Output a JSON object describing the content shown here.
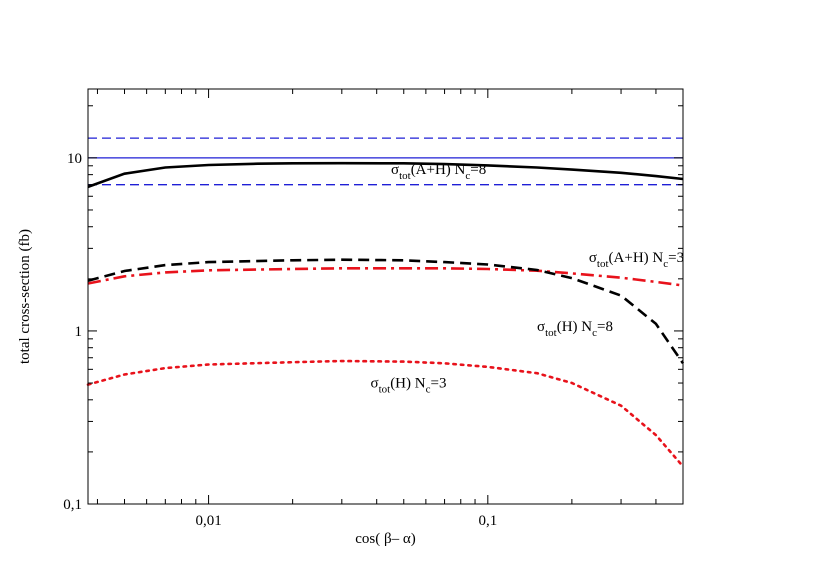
{
  "chart_data": {
    "type": "line",
    "x_scale": "log",
    "y_scale": "log",
    "xlim": [
      0.0037,
      0.5
    ],
    "ylim": [
      0.1,
      25
    ],
    "xlabel": "cos( β– α)",
    "ylabel": "total cross-section (fb)",
    "x_ticks": [
      {
        "value": 0.01,
        "label": "0,01"
      },
      {
        "value": 0.1,
        "label": "0,1"
      }
    ],
    "y_ticks": [
      {
        "value": 0.1,
        "label": "0,1"
      },
      {
        "value": 1,
        "label": "1"
      },
      {
        "value": 10,
        "label": "10"
      }
    ],
    "hlines": [
      {
        "name": "band-upper",
        "y": 13.0,
        "color": "#1f1fd6",
        "style": "dashed"
      },
      {
        "name": "central",
        "y": 10.0,
        "color": "#1f1fd6",
        "style": "solid"
      },
      {
        "name": "band-lower",
        "y": 7.0,
        "color": "#1f1fd6",
        "style": "dashed"
      }
    ],
    "series": [
      {
        "name": "sigma-AH-Nc8",
        "color": "#000000",
        "style": "solid",
        "width": 2.6,
        "points": [
          [
            0.0037,
            6.8
          ],
          [
            0.005,
            8.1
          ],
          [
            0.007,
            8.8
          ],
          [
            0.01,
            9.1
          ],
          [
            0.015,
            9.25
          ],
          [
            0.02,
            9.3
          ],
          [
            0.03,
            9.32
          ],
          [
            0.05,
            9.3
          ],
          [
            0.07,
            9.2
          ],
          [
            0.1,
            9.05
          ],
          [
            0.15,
            8.8
          ],
          [
            0.2,
            8.55
          ],
          [
            0.3,
            8.2
          ],
          [
            0.4,
            7.85
          ],
          [
            0.5,
            7.55
          ]
        ]
      },
      {
        "name": "sigma-AH-Nc3",
        "color": "#e8121b",
        "style": "dashdot",
        "width": 2.6,
        "points": [
          [
            0.0037,
            1.88
          ],
          [
            0.005,
            2.07
          ],
          [
            0.007,
            2.18
          ],
          [
            0.01,
            2.24
          ],
          [
            0.02,
            2.28
          ],
          [
            0.03,
            2.3
          ],
          [
            0.05,
            2.3
          ],
          [
            0.07,
            2.3
          ],
          [
            0.1,
            2.28
          ],
          [
            0.15,
            2.23
          ],
          [
            0.2,
            2.15
          ],
          [
            0.3,
            2.03
          ],
          [
            0.4,
            1.92
          ],
          [
            0.5,
            1.83
          ]
        ]
      },
      {
        "name": "sigma-H-Nc8",
        "color": "#000000",
        "style": "dashed",
        "width": 2.6,
        "points": [
          [
            0.0037,
            1.95
          ],
          [
            0.005,
            2.22
          ],
          [
            0.007,
            2.4
          ],
          [
            0.01,
            2.5
          ],
          [
            0.02,
            2.56
          ],
          [
            0.03,
            2.58
          ],
          [
            0.05,
            2.56
          ],
          [
            0.07,
            2.5
          ],
          [
            0.1,
            2.42
          ],
          [
            0.15,
            2.25
          ],
          [
            0.2,
            2.02
          ],
          [
            0.3,
            1.6
          ],
          [
            0.4,
            1.1
          ],
          [
            0.5,
            0.65
          ]
        ]
      },
      {
        "name": "sigma-H-Nc3",
        "color": "#e8121b",
        "style": "dotted",
        "width": 2.6,
        "points": [
          [
            0.0037,
            0.49
          ],
          [
            0.005,
            0.56
          ],
          [
            0.007,
            0.61
          ],
          [
            0.01,
            0.64
          ],
          [
            0.02,
            0.66
          ],
          [
            0.03,
            0.67
          ],
          [
            0.05,
            0.665
          ],
          [
            0.07,
            0.65
          ],
          [
            0.1,
            0.62
          ],
          [
            0.15,
            0.57
          ],
          [
            0.2,
            0.5
          ],
          [
            0.3,
            0.37
          ],
          [
            0.4,
            0.25
          ],
          [
            0.5,
            0.165
          ]
        ]
      }
    ],
    "annotations": [
      {
        "name": "label-sigma-AH-Nc8",
        "x": 0.045,
        "y": 8.05,
        "sigma": "σ",
        "sub": "tot",
        "mid": "(A+H) N",
        "sub2": "c",
        "tail": "=8"
      },
      {
        "name": "label-sigma-AH-Nc3",
        "x": 0.23,
        "y": 2.5,
        "sigma": "σ",
        "sub": "tot",
        "mid": "(A+H) N",
        "sub2": "c",
        "tail": "=3"
      },
      {
        "name": "label-sigma-H-Nc8",
        "x": 0.15,
        "y": 1.0,
        "sigma": "σ",
        "sub": "tot",
        "mid": "(H)  N",
        "sub2": "c",
        "tail": "=8"
      },
      {
        "name": "label-sigma-H-Nc3",
        "x": 0.038,
        "y": 0.47,
        "sigma": "σ",
        "sub": "tot",
        "mid": "(H)  N",
        "sub2": "c",
        "tail": "=3"
      }
    ]
  }
}
